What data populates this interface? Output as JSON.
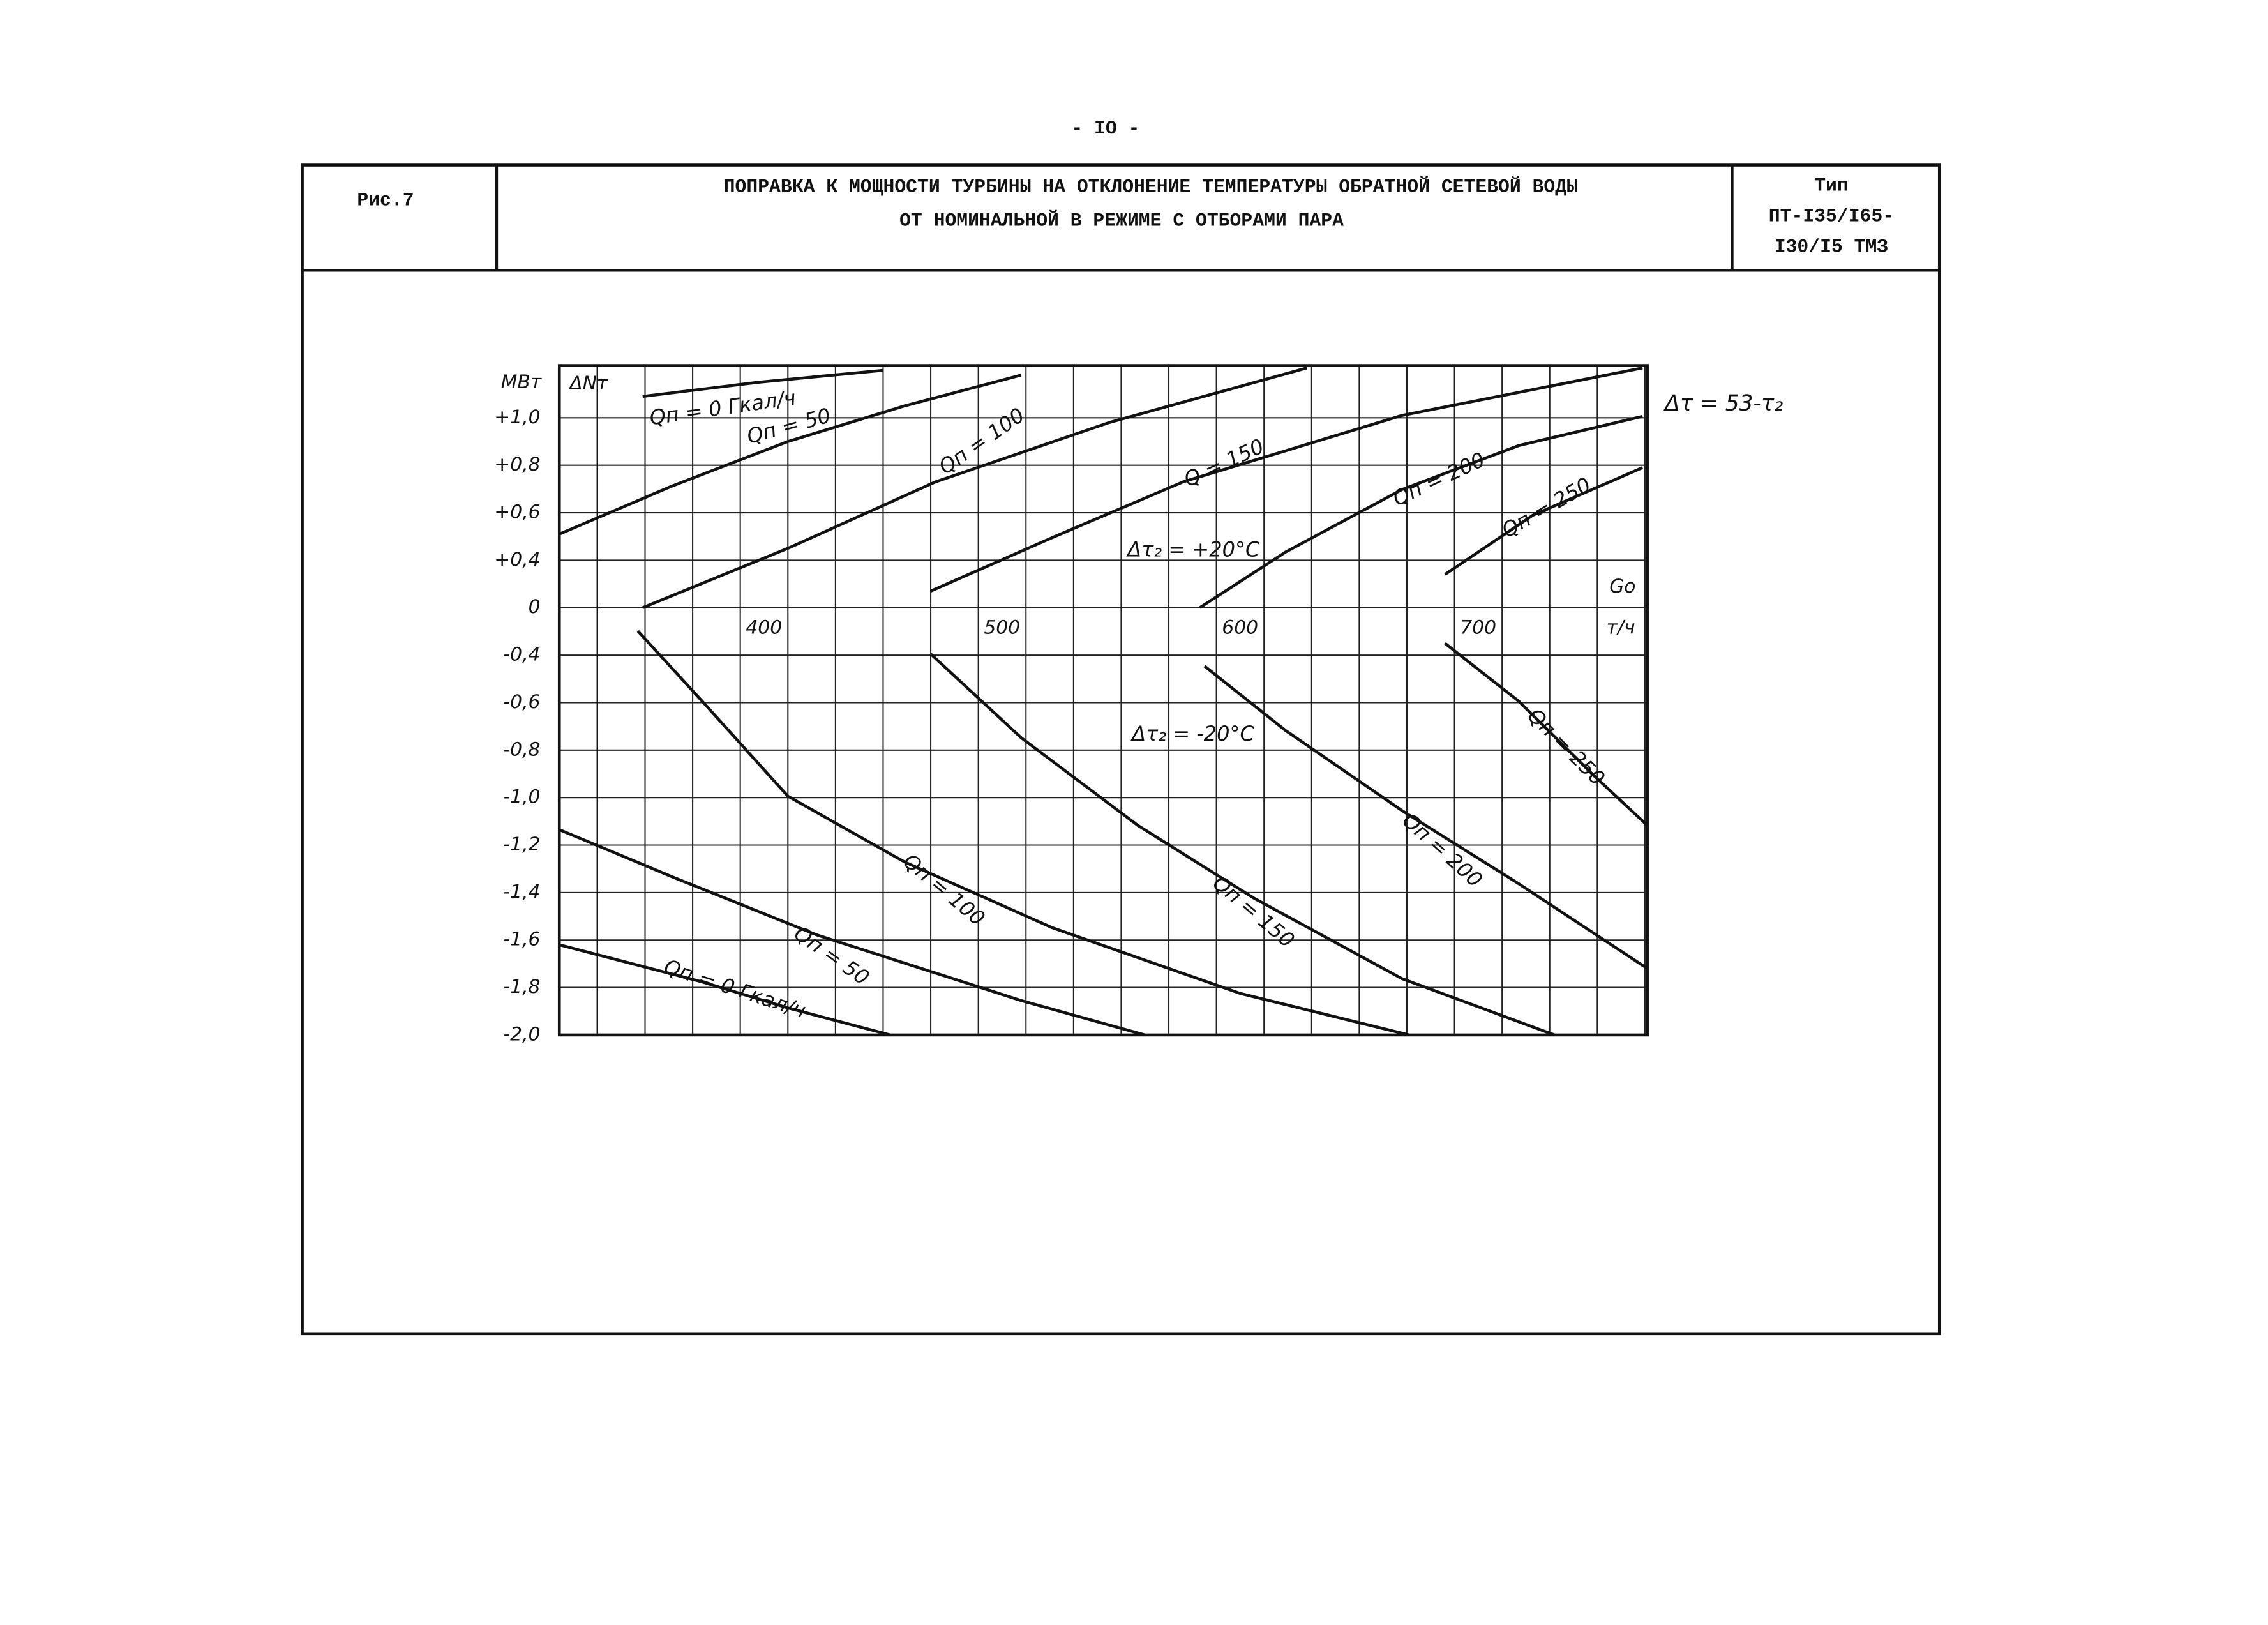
{
  "page_number": "- IO -",
  "header": {
    "figure": "Рис.7",
    "title": [
      "ПОПРАВКА К МОЩНОСТИ ТУРБИНЫ НА ОТКЛОНЕНИЕ ТЕМПЕРАТУРЫ ОБРАТНОЙ СЕТЕВОЙ ВОДЫ",
      "ОТ НОМИНАЛЬНОЙ В РЕЖИМЕ С ОТБОРАМИ ПАРА"
    ],
    "type": [
      "Тип",
      "ПТ-I35/I65-",
      "I30/I5 ТМЗ"
    ]
  },
  "chart_data": {
    "type": "line",
    "y_unit": "МВт",
    "y_label": "ΔNт",
    "x_label": "Gо",
    "x_unit": "т/ч",
    "annotations": [
      "Δτ = 53-τ₂",
      "Δτ₂ = +20°C",
      "Δτ₂ = -20°C"
    ],
    "xlim": [
      304,
      761
    ],
    "xticks": [
      400,
      500,
      600,
      700
    ],
    "minor_xticks": [
      320,
      340,
      360,
      380,
      420,
      440,
      460,
      480,
      520,
      540,
      560,
      580,
      620,
      640,
      660,
      680,
      720,
      740,
      760
    ],
    "ylim": [
      -2.0,
      1.22
    ],
    "yticks": [
      {
        "value": 1.0,
        "label": "+1,0"
      },
      {
        "value": 0.8,
        "label": "+0,8"
      },
      {
        "value": 0.6,
        "label": "+0,6"
      },
      {
        "value": 0.4,
        "label": "+0,4"
      },
      0,
      {
        "value": -0.4,
        "label": "-0,4"
      },
      {
        "value": -0.6,
        "label": "-0,6"
      },
      {
        "value": -0.8,
        "label": "-0,8"
      },
      {
        "value": -1.0,
        "label": "-1,0"
      },
      {
        "value": -1.2,
        "label": "-1,2"
      },
      {
        "value": -1.4,
        "label": "-1,4"
      },
      {
        "value": -1.6,
        "label": "-1,6"
      },
      {
        "value": -1.8,
        "label": "-1,8"
      },
      {
        "value": -2.0,
        "label": "-2,0"
      }
    ],
    "grid": true,
    "series": [
      {
        "name": "Qп = 0 Гкал/ч",
        "color": "#111111",
        "x": [
          339,
          388,
          440
        ],
        "values": [
          1.09,
          1.15,
          1.2
        ]
      },
      {
        "name": "Qп = 50",
        "color": "#111111",
        "x": [
          304,
          351,
          400,
          449,
          498
        ],
        "values": [
          0.51,
          0.711,
          0.9,
          1.05,
          1.18
        ]
      },
      {
        "name": "Qп = 100",
        "color": "#111111",
        "x": [
          339,
          400,
          462,
          535,
          618
        ],
        "values": [
          0,
          0.45,
          0.73,
          0.98,
          1.21
        ]
      },
      {
        "name": "Q = 150",
        "color": "#111111",
        "x": [
          460,
          511,
          566,
          658,
          759
        ],
        "values": [
          0.14,
          0.495,
          0.73,
          1.01,
          1.21
        ]
      },
      {
        "name": "Qп = 200",
        "color": "#111111",
        "x": [
          573,
          609,
          658,
          707,
          759
        ],
        "values": [
          0,
          0.434,
          0.698,
          0.883,
          1.006
        ]
      },
      {
        "name": "Qп = 250",
        "color": "#111111",
        "x": [
          676,
          713,
          759
        ],
        "values": [
          0.28,
          0.59,
          0.79
        ]
      },
      {
        "name": "Qп = 0 Гкал/ч",
        "color": "#111111",
        "x": [
          304,
          363.5,
          400,
          443
        ],
        "values": [
          -1.62,
          -1.775,
          -1.886,
          -2.0
        ]
      },
      {
        "name": "Qп = 50",
        "color": "#111111",
        "x": [
          304,
          351,
          412,
          498,
          550
        ],
        "values": [
          -1.135,
          -1.332,
          -1.578,
          -1.855,
          -2.0
        ]
      },
      {
        "name": "Qп = 100",
        "color": "#111111",
        "x": [
          337,
          364,
          400,
          449,
          511,
          590,
          661
        ],
        "values": [
          -0.197,
          -0.594,
          -0.994,
          -1.271,
          -1.548,
          -1.825,
          -2.0
        ]
      },
      {
        "name": "Qп = 150",
        "color": "#111111",
        "x": [
          460,
          498,
          547,
          596,
          658,
          722
        ],
        "values": [
          -0.39,
          -0.748,
          -1.117,
          -1.425,
          -1.763,
          -2.0
        ]
      },
      {
        "name": "Qп = 200",
        "color": "#111111",
        "x": [
          575,
          609,
          658,
          707,
          761
        ],
        "values": [
          -0.446,
          -0.717,
          -1.055,
          -1.363,
          -1.72
        ]
      },
      {
        "name": "Qп = 250",
        "color": "#111111",
        "x": [
          676,
          707,
          738,
          761
        ],
        "values": [
          -0.3,
          -0.594,
          -0.902,
          -1.117
        ]
      }
    ]
  }
}
